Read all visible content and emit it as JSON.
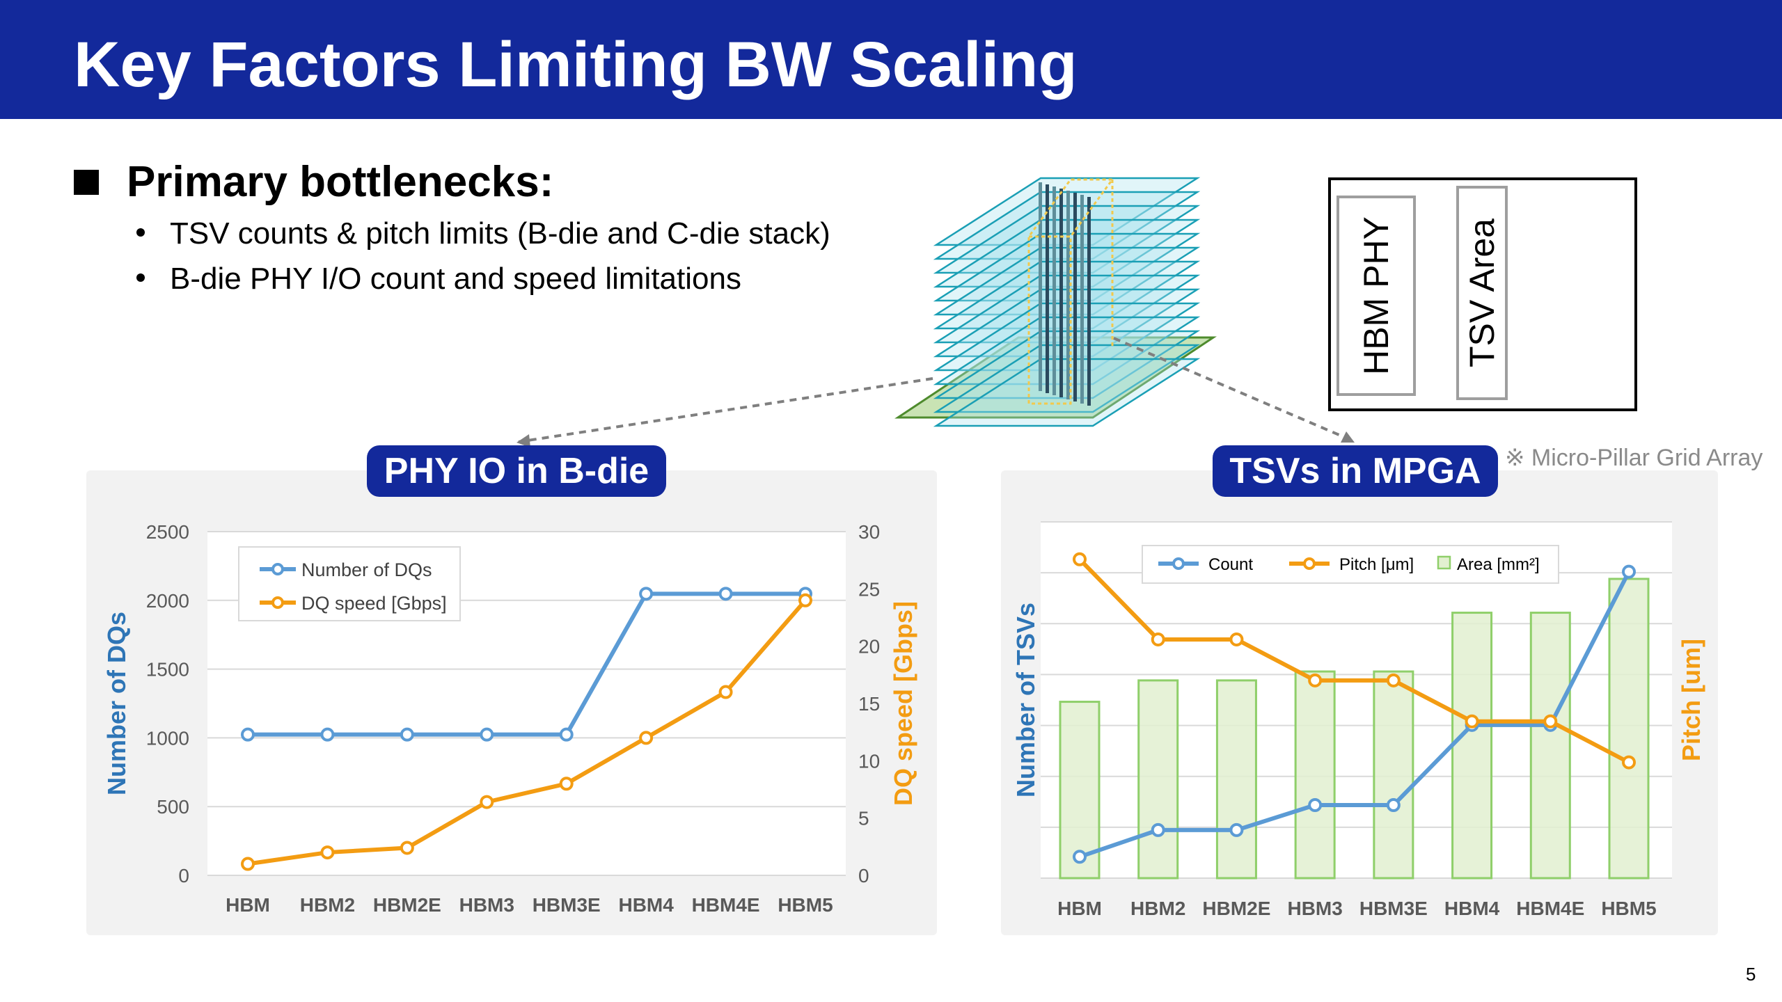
{
  "slide": {
    "title": "Key Factors Limiting BW Scaling",
    "heading": "Primary bottlenecks:",
    "bullets": [
      "TSV counts & pitch limits (B-die and C-die stack)",
      "B-die PHY I/O count and speed limitations"
    ],
    "page_number": "5",
    "left_pill": "PHY IO in B-die",
    "right_pill": "TSVs in MPGA",
    "note": "※ Micro-Pillar Grid Array",
    "box_labels": [
      "HBM PHY",
      "TSV Area"
    ],
    "colors": {
      "banner": "#13299b",
      "blue": "#5b9bd5",
      "orange": "#f39c12",
      "green_fill": "#e2f0d0",
      "green_edge": "#8fcf6a",
      "axis_blue": "#2e75b6",
      "axis_orange": "#f39c12"
    }
  },
  "chart_data": [
    {
      "type": "line",
      "categories": [
        "HBM",
        "HBM2",
        "HBM2E",
        "HBM3",
        "HBM3E",
        "HBM4",
        "HBM4E",
        "HBM5"
      ],
      "series": [
        {
          "name": "Number of DQs",
          "axis": "left",
          "color": "#5b9bd5",
          "values": [
            1024,
            1024,
            1024,
            1024,
            1024,
            2048,
            2048,
            2048
          ]
        },
        {
          "name": "DQ speed [Gbps]",
          "axis": "right",
          "color": "#f39c12",
          "values": [
            1,
            2,
            2.4,
            6.4,
            8,
            12,
            16,
            24
          ]
        }
      ],
      "y_left": {
        "label": "Number of DQs",
        "range": [
          0,
          2500
        ],
        "ticks": [
          "2500",
          "2000",
          "1500",
          "1000",
          "500",
          "0"
        ]
      },
      "y_right": {
        "label": "DQ speed [Gbps]",
        "range": [
          0,
          30
        ],
        "ticks": [
          "30",
          "25",
          "20",
          "15",
          "10",
          "5",
          "0"
        ]
      },
      "grid": true,
      "legend": "top-left"
    },
    {
      "type": "bar",
      "categories": [
        "HBM",
        "HBM2",
        "HBM2E",
        "HBM3",
        "HBM3E",
        "HBM4",
        "HBM4E",
        "HBM5"
      ],
      "series": [
        {
          "name": "Count",
          "kind": "line",
          "color": "#5b9bd5",
          "values": [
            0.06,
            0.135,
            0.135,
            0.205,
            0.205,
            0.43,
            0.43,
            0.86
          ]
        },
        {
          "name": "Pitch [μm]",
          "kind": "line",
          "color": "#f39c12",
          "values": [
            0.895,
            0.67,
            0.67,
            0.555,
            0.555,
            0.44,
            0.44,
            0.325
          ]
        },
        {
          "name": "Area [mm²]",
          "kind": "bar",
          "color": "#e2f0d0",
          "values": [
            0.495,
            0.555,
            0.555,
            0.58,
            0.58,
            0.745,
            0.745,
            0.84
          ]
        }
      ],
      "y_left": {
        "label": "Number of TSVs",
        "range": [
          0,
          1
        ]
      },
      "y_right": {
        "label": "Pitch [um]",
        "range": [
          0,
          1
        ]
      },
      "grid": true,
      "legend": "top"
    }
  ]
}
